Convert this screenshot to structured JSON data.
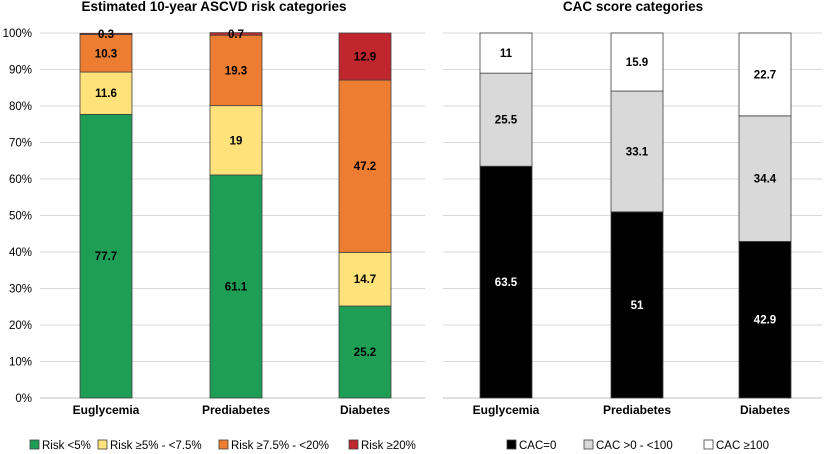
{
  "chart_data": [
    {
      "type": "bar",
      "stacked": true,
      "title": "Estimated 10-year ASCVD risk categories",
      "categories": [
        "Euglycemia",
        "Prediabetes",
        "Diabetes"
      ],
      "ylim": [
        0,
        100
      ],
      "yticks": [
        "0%",
        "10%",
        "20%",
        "30%",
        "40%",
        "50%",
        "60%",
        "70%",
        "80%",
        "90%",
        "100%"
      ],
      "grid": true,
      "legend_position": "bottom",
      "series": [
        {
          "name": "Risk <5%",
          "color": "#1e9e55",
          "label_color": "#000000",
          "values": [
            77.7,
            61.1,
            25.2
          ],
          "labels": [
            "77.7",
            "61.1",
            "25.2"
          ]
        },
        {
          "name": "Risk ≥5% - <7.5%",
          "color": "#ffe27a",
          "label_color": "#000000",
          "values": [
            11.6,
            19,
            14.7
          ],
          "labels": [
            "11.6",
            "19",
            "14.7"
          ]
        },
        {
          "name": "Risk ≥7.5% - <20%",
          "color": "#ed7d31",
          "label_color": "#000000",
          "values": [
            10.3,
            19.3,
            47.2
          ],
          "labels": [
            "10.3",
            "19.3",
            "47.2"
          ]
        },
        {
          "name": "Risk ≥20%",
          "color": "#c0262d",
          "label_color": "#000000",
          "values": [
            0.3,
            0.7,
            12.9
          ],
          "labels": [
            "0.3",
            "0.7",
            "12.9"
          ]
        }
      ]
    },
    {
      "type": "bar",
      "stacked": true,
      "title": "CAC score categories",
      "categories": [
        "Euglycemia",
        "Prediabetes",
        "Diabetes"
      ],
      "ylim": [
        0,
        100
      ],
      "grid": true,
      "legend_position": "bottom",
      "series": [
        {
          "name": "CAC=0",
          "color": "#000000",
          "label_color": "#ffffff",
          "values": [
            63.5,
            51,
            42.9
          ],
          "labels": [
            "63.5",
            "51",
            "42.9"
          ]
        },
        {
          "name": "CAC >0 - <100",
          "color": "#d9d9d9",
          "label_color": "#000000",
          "values": [
            25.5,
            33.1,
            34.4
          ],
          "labels": [
            "25.5",
            "33.1",
            "34.4"
          ]
        },
        {
          "name": "CAC ≥100",
          "color": "#ffffff",
          "label_color": "#000000",
          "values": [
            11,
            15.9,
            22.7
          ],
          "labels": [
            "11",
            "15.9",
            "22.7"
          ]
        }
      ]
    }
  ]
}
